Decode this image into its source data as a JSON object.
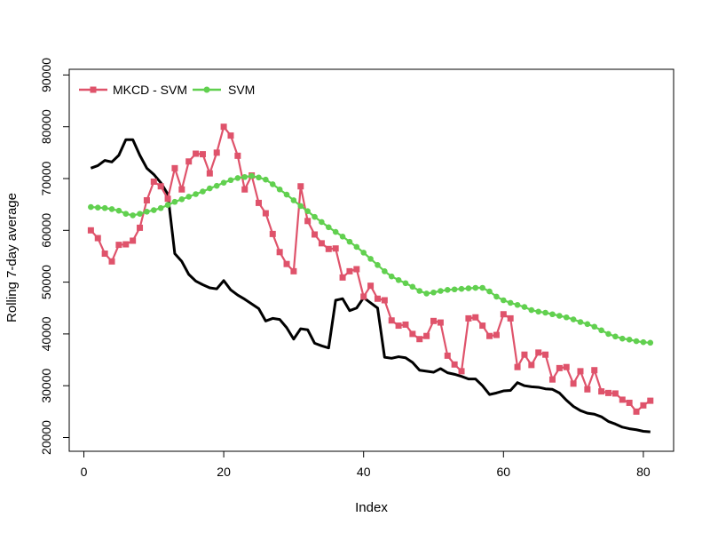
{
  "chart_data": {
    "type": "line",
    "title": "",
    "xlabel": "Index",
    "ylabel": "Rolling 7-day average",
    "xlim": [
      1,
      81
    ],
    "ylim": [
      20000,
      90000
    ],
    "x_ticks": [
      0,
      20,
      40,
      60,
      80
    ],
    "y_ticks": [
      20000,
      30000,
      40000,
      50000,
      60000,
      70000,
      80000,
      90000
    ],
    "legend_position": "top-left",
    "grid": false,
    "series": [
      {
        "name": "",
        "color": "#000000",
        "marker": "none",
        "values": [
          72000,
          72500,
          73500,
          73200,
          74500,
          77500,
          77500,
          74500,
          72000,
          70800,
          69200,
          67000,
          55500,
          54000,
          51500,
          50200,
          49500,
          48900,
          48700,
          50300,
          48500,
          47500,
          46700,
          45800,
          44900,
          42500,
          43000,
          42800,
          41200,
          39000,
          41000,
          40800,
          38200,
          37700,
          37300,
          46500,
          46800,
          44500,
          45000,
          47000,
          46000,
          45000,
          35500,
          35300,
          35600,
          35400,
          34500,
          33000,
          32800,
          32600,
          33300,
          32500,
          32200,
          31800,
          31300,
          31300,
          30000,
          28300,
          28600,
          29000,
          29100,
          30600,
          30000,
          29800,
          29700,
          29400,
          29300,
          28600,
          27200,
          26000,
          25200,
          24700,
          24500,
          24000,
          23100,
          22600,
          22000,
          21700,
          21500,
          21200,
          21100
        ]
      },
      {
        "name": "MKCD - SVM",
        "color": "#DF536B",
        "marker": "square",
        "values": [
          60000,
          58500,
          55500,
          54000,
          57200,
          57300,
          58000,
          60500,
          65800,
          69400,
          68500,
          66100,
          72000,
          67900,
          73300,
          74800,
          74700,
          71000,
          75000,
          80000,
          78300,
          74400,
          67900,
          70600,
          65300,
          63300,
          59300,
          55800,
          53500,
          52100,
          68500,
          61800,
          59200,
          57500,
          56400,
          56500,
          50900,
          52100,
          52500,
          47200,
          49300,
          46800,
          46500,
          42600,
          41600,
          41800,
          40000,
          39000,
          39600,
          42500,
          42200,
          35800,
          34100,
          32800,
          43000,
          43200,
          41600,
          39600,
          39800,
          43800,
          43000,
          33600,
          36000,
          34000,
          36400,
          36000,
          31200,
          33400,
          33600,
          30400,
          32800,
          29300,
          33000,
          28900,
          28600,
          28500,
          27300,
          26700,
          25000,
          26200,
          27100
        ]
      },
      {
        "name": "SVM",
        "color": "#61D04F",
        "marker": "dot",
        "values": [
          64500,
          64400,
          64300,
          64100,
          63800,
          63200,
          62900,
          63200,
          63600,
          63900,
          64300,
          64900,
          65500,
          66000,
          66500,
          67000,
          67500,
          68100,
          68600,
          69200,
          69700,
          70100,
          70300,
          70500,
          70200,
          69800,
          68900,
          67900,
          66900,
          65800,
          64700,
          63700,
          62600,
          61600,
          60600,
          59700,
          58800,
          57800,
          56800,
          55700,
          54500,
          53300,
          52100,
          51100,
          50400,
          49800,
          49100,
          48300,
          47800,
          48000,
          48300,
          48500,
          48600,
          48700,
          48800,
          48900,
          48900,
          48200,
          47200,
          46500,
          46000,
          45600,
          45200,
          44600,
          44300,
          44100,
          43800,
          43500,
          43200,
          42800,
          42300,
          41900,
          41400,
          40700,
          40000,
          39500,
          39100,
          38900,
          38600,
          38400,
          38300
        ]
      }
    ]
  }
}
